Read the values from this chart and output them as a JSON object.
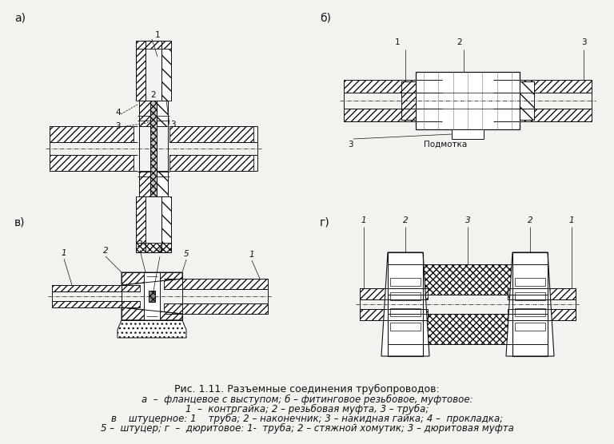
{
  "bg_color": "#f2f2ee",
  "line_color": "#111111",
  "title_line1": "Рис. 1.11. Разъемные соединения трубопроводов:",
  "title_line2": "а  –  фланцевое с выступом; б – фитинговое резьбовое, муфтовое:",
  "title_line3": "1  –  контргайка; 2 – резьбовая муфта, 3 – труба;",
  "title_line4": "в    штуцерное: 1    труба; 2 – наконечник; 3 – накидная гайка; 4 –  прокладка;",
  "title_line5": "5 –  штуцер; г  –  дюритовое: 1-  труба; 2 – стяжной хомутик; 3 – дюритовая муфта",
  "label_a": "а)",
  "label_b": "б)",
  "label_v": "в)",
  "label_g": "г)",
  "font_size_caption": 8.5,
  "font_size_label": 10
}
